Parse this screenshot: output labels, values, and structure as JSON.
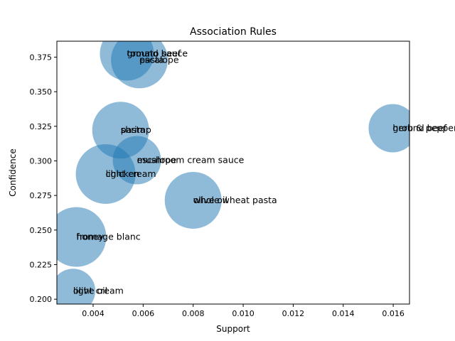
{
  "chart_data": {
    "type": "scatter",
    "title": "Association Rules",
    "xlabel": "Support",
    "ylabel": "Confidence",
    "xlim": [
      0.00255,
      0.01665
    ],
    "ylim": [
      0.1965,
      0.3865
    ],
    "xticks": [
      0.004,
      0.006,
      0.008,
      0.01,
      0.012,
      0.014,
      0.016
    ],
    "xtick_labels": [
      "0.004",
      "0.006",
      "0.008",
      "0.010",
      "0.012",
      "0.014",
      "0.016"
    ],
    "yticks": [
      0.2,
      0.225,
      0.25,
      0.275,
      0.3,
      0.325,
      0.35,
      0.375
    ],
    "ytick_labels": [
      "0.200",
      "0.225",
      "0.250",
      "0.275",
      "0.300",
      "0.325",
      "0.350",
      "0.375"
    ],
    "grid": false,
    "marker_color": "#1f77b4",
    "marker_alpha": 0.5,
    "points": [
      {
        "x": 0.00535,
        "y": 0.3775,
        "size": 0.95,
        "labels": [
          "tomato sauce",
          "ground beef"
        ]
      },
      {
        "x": 0.00585,
        "y": 0.373,
        "size": 1.0,
        "labels": [
          "pasta",
          "escalope"
        ]
      },
      {
        "x": 0.0051,
        "y": 0.3222,
        "size": 1.0,
        "labels": [
          "pasta",
          "shrimp"
        ]
      },
      {
        "x": 0.00575,
        "y": 0.3005,
        "size": 0.85,
        "labels": [
          "mushroom cream sauce",
          "escalope"
        ]
      },
      {
        "x": 0.0045,
        "y": 0.2905,
        "size": 1.05,
        "labels": [
          "chicken",
          "light cream"
        ]
      },
      {
        "x": 0.008,
        "y": 0.2715,
        "size": 1.0,
        "labels": [
          "whole wheat pasta",
          "olive oil"
        ]
      },
      {
        "x": 0.01598,
        "y": 0.3236,
        "size": 0.85,
        "labels": [
          "herb & pepper",
          "ground beef"
        ]
      },
      {
        "x": 0.00333,
        "y": 0.245,
        "size": 1.05,
        "labels": [
          "fromage blanc",
          "honey"
        ]
      },
      {
        "x": 0.0032,
        "y": 0.206,
        "size": 0.78,
        "labels": [
          "olive oil",
          "light cream"
        ]
      }
    ]
  }
}
